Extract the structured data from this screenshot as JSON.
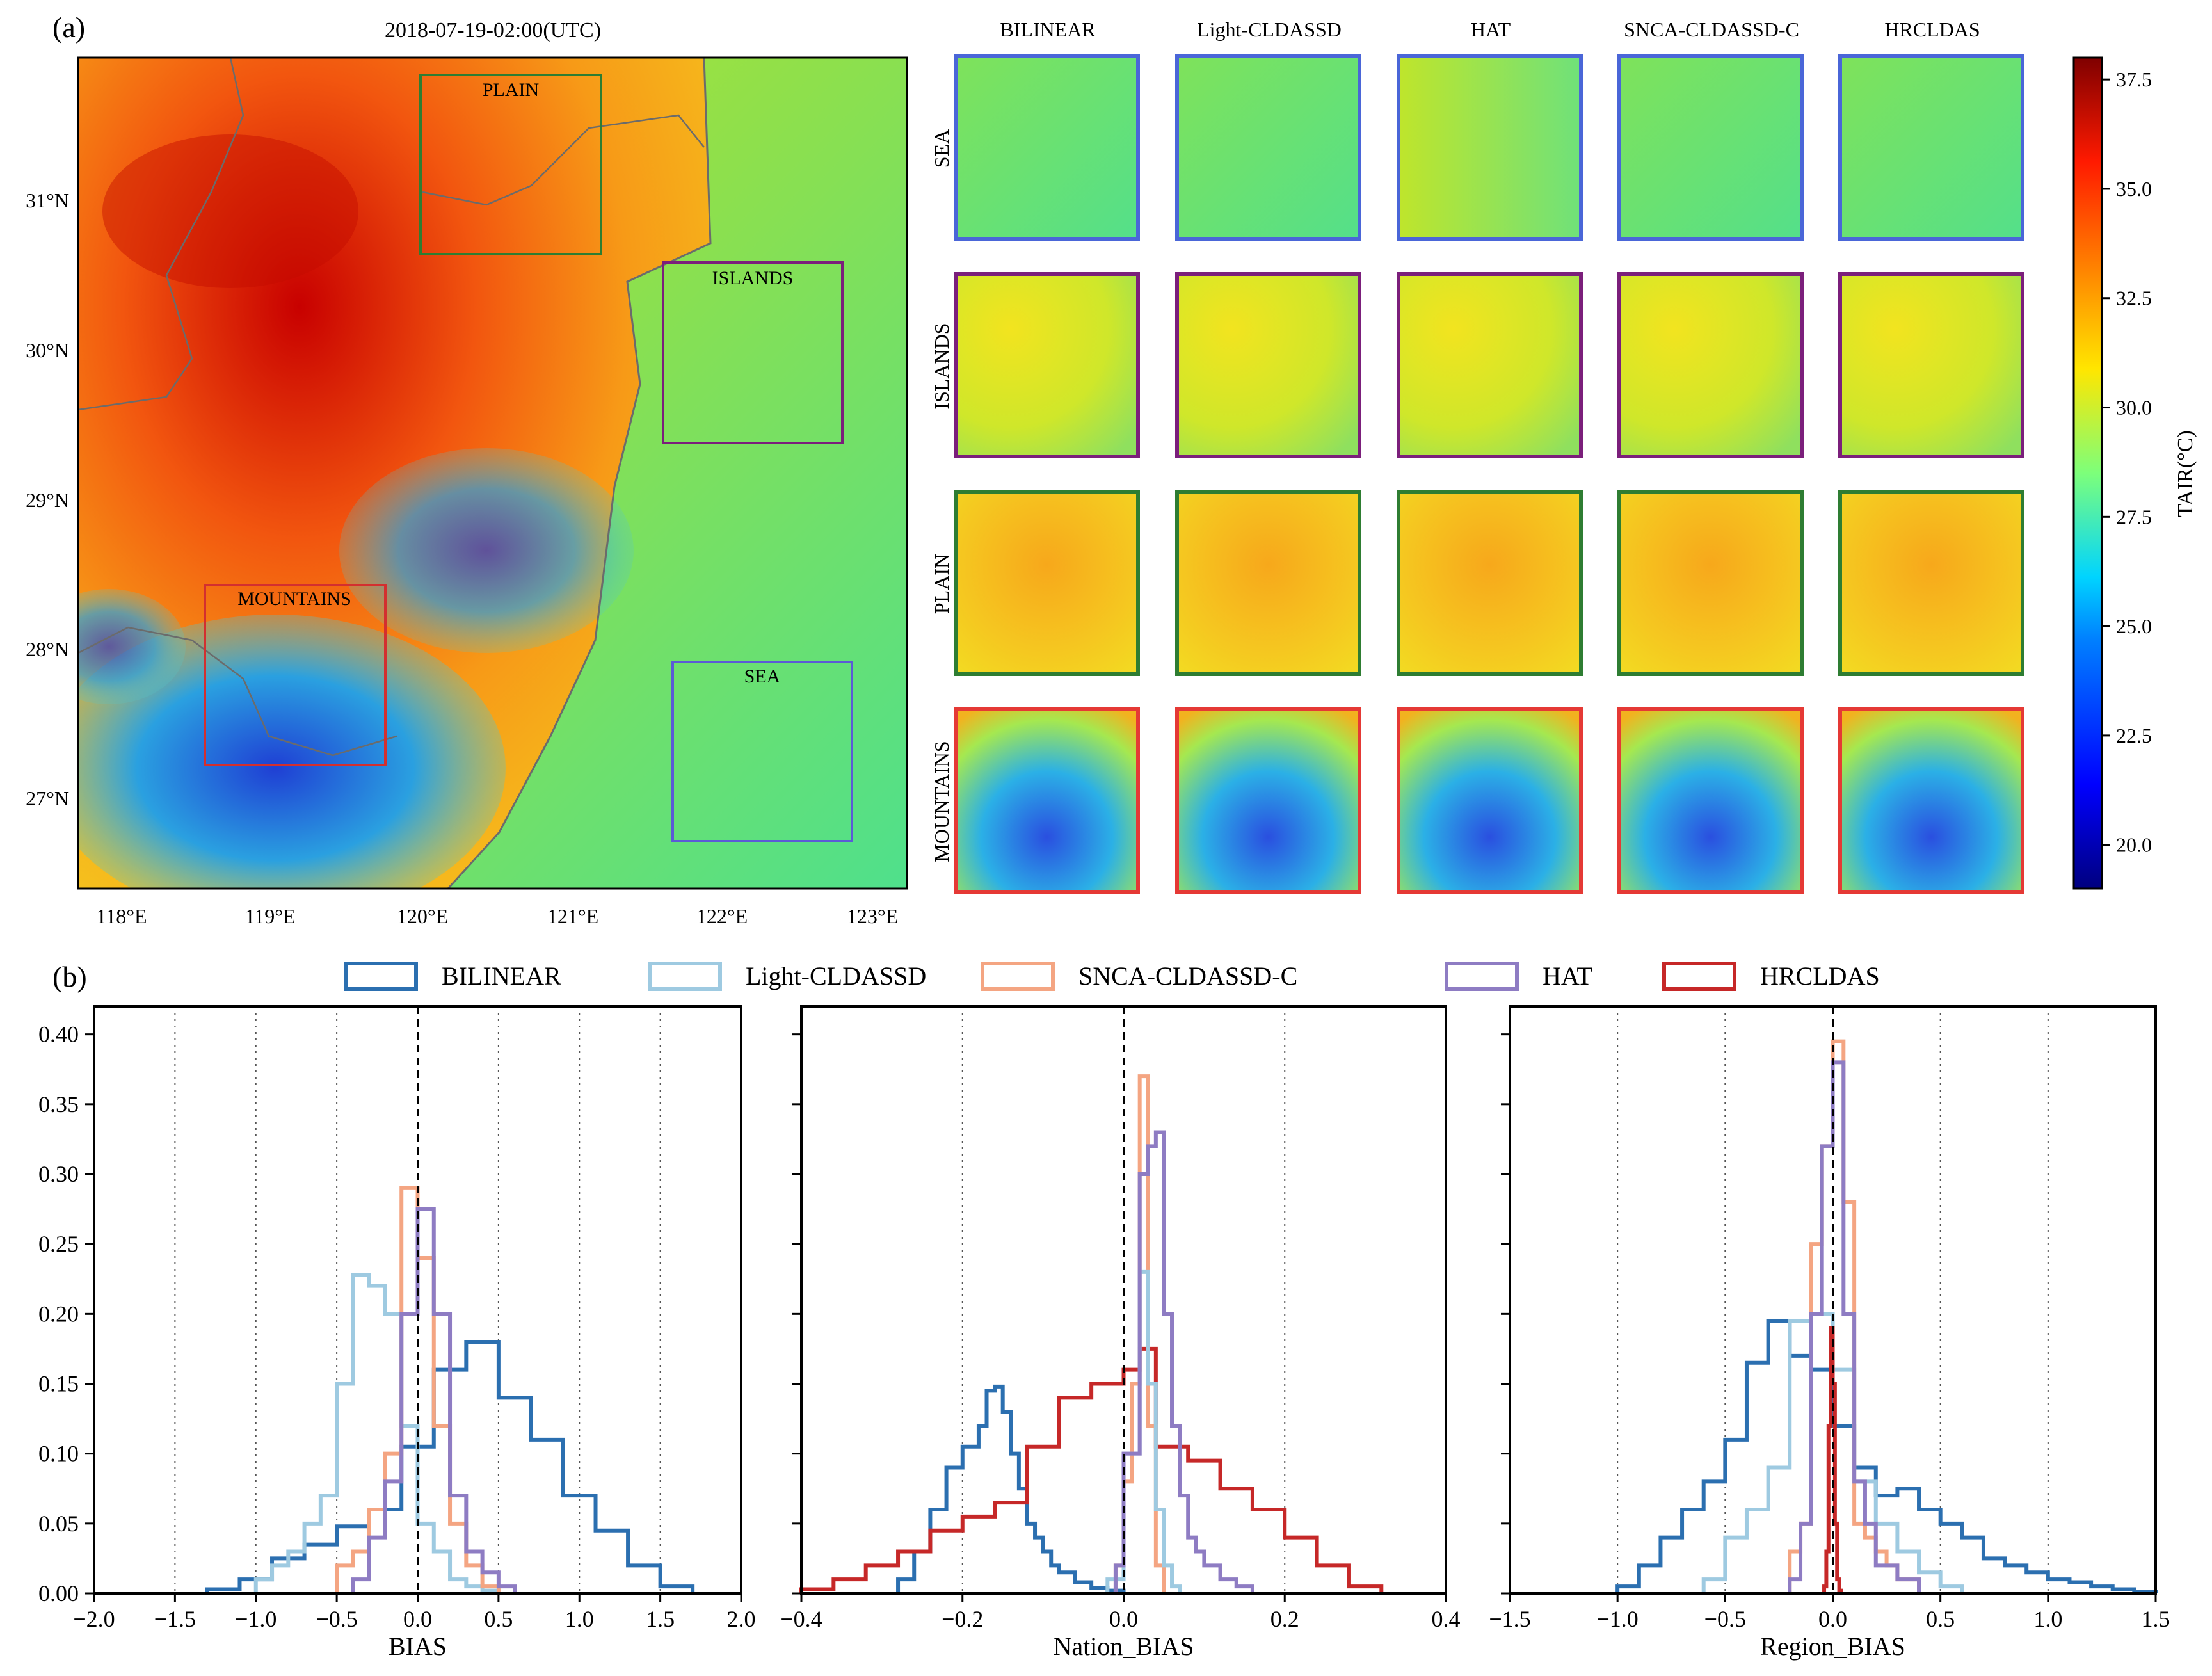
{
  "panel_a": {
    "label": "(a)",
    "timestamp": "2018-07-19-02:00(UTC)",
    "map_lon_ticks": [
      "118°E",
      "119°E",
      "120°E",
      "121°E",
      "122°E",
      "123°E"
    ],
    "map_lat_ticks": [
      "31°N",
      "30°N",
      "29°N",
      "28°N",
      "27°N"
    ],
    "regions": [
      {
        "name": "PLAIN",
        "color": "#2e7d32"
      },
      {
        "name": "ISLANDS",
        "color": "#7b1f7b"
      },
      {
        "name": "MOUNTAINS",
        "color": "#d32f2f"
      },
      {
        "name": "SEA",
        "color": "#5b5bd6"
      }
    ],
    "grid_columns": [
      "BILINEAR",
      "Light-CLDASSD",
      "HAT",
      "SNCA-CLDASSD-C",
      "HRCLDAS"
    ],
    "grid_rows": [
      {
        "name": "SEA",
        "color": "#4a66d8"
      },
      {
        "name": "ISLANDS",
        "color": "#7b1f7b"
      },
      {
        "name": "PLAIN",
        "color": "#2e7d32"
      },
      {
        "name": "MOUNTAINS",
        "color": "#e53935"
      }
    ],
    "colorbar": {
      "label": "TAIR(°C)",
      "ticks": [
        "37.5",
        "35.0",
        "32.5",
        "30.0",
        "27.5",
        "25.0",
        "22.5",
        "20.0"
      ],
      "range": [
        19.0,
        38.0
      ]
    }
  },
  "panel_b": {
    "label": "(b)",
    "legend": [
      {
        "name": "BILINEAR",
        "color": "#2b6fb0"
      },
      {
        "name": "Light-CLDASSD",
        "color": "#9ecae1"
      },
      {
        "name": "SNCA-CLDASSD-C",
        "color": "#f4a582"
      },
      {
        "name": "HAT",
        "color": "#8e7cc3"
      },
      {
        "name": "HRCLDAS",
        "color": "#c62828"
      }
    ]
  },
  "chart_data": [
    {
      "type": "step-histogram",
      "xlabel": "BIAS",
      "ylabel": "",
      "xlim": [
        -2.0,
        2.0
      ],
      "ylim": [
        0,
        0.42
      ],
      "xticks": [
        "−2.0",
        "−1.5",
        "−1.0",
        "−0.5",
        "0.0",
        "0.5",
        "1.0",
        "1.5",
        "2.0"
      ],
      "yticks": [
        "0.00",
        "0.05",
        "0.10",
        "0.15",
        "0.20",
        "0.25",
        "0.30",
        "0.35",
        "0.40"
      ],
      "vgrid": [
        -1.5,
        -1.0,
        -0.5,
        0.5,
        1.0,
        1.5
      ],
      "series": [
        {
          "name": "BILINEAR",
          "edges": [
            -1.3,
            -1.1,
            -0.9,
            -0.7,
            -0.5,
            -0.3,
            -0.1,
            0.1,
            0.3,
            0.5,
            0.7,
            0.9,
            1.1,
            1.3,
            1.5,
            1.7
          ],
          "values": [
            0.003,
            0.01,
            0.025,
            0.035,
            0.048,
            0.06,
            0.105,
            0.16,
            0.18,
            0.14,
            0.11,
            0.07,
            0.045,
            0.02,
            0.005
          ]
        },
        {
          "name": "Light-CLDASSD",
          "edges": [
            -1.0,
            -0.9,
            -0.8,
            -0.7,
            -0.6,
            -0.5,
            -0.4,
            -0.3,
            -0.2,
            -0.1,
            0.0,
            0.1,
            0.2,
            0.3,
            0.4,
            0.5
          ],
          "values": [
            0.01,
            0.02,
            0.03,
            0.05,
            0.07,
            0.15,
            0.228,
            0.22,
            0.2,
            0.12,
            0.05,
            0.03,
            0.01,
            0.005,
            0.002
          ]
        },
        {
          "name": "SNCA-CLDASSD-C",
          "edges": [
            -0.5,
            -0.4,
            -0.3,
            -0.2,
            -0.1,
            0.0,
            0.1,
            0.2,
            0.3,
            0.4,
            0.5
          ],
          "values": [
            0.02,
            0.03,
            0.06,
            0.1,
            0.29,
            0.24,
            0.12,
            0.05,
            0.02,
            0.005
          ]
        },
        {
          "name": "HAT",
          "edges": [
            -0.4,
            -0.3,
            -0.2,
            -0.1,
            0.0,
            0.1,
            0.2,
            0.3,
            0.4,
            0.5,
            0.6
          ],
          "values": [
            0.01,
            0.04,
            0.08,
            0.2,
            0.275,
            0.2,
            0.07,
            0.03,
            0.015,
            0.005
          ]
        }
      ]
    },
    {
      "type": "step-histogram",
      "xlabel": "Nation_BIAS",
      "ylabel": "",
      "xlim": [
        -0.4,
        0.4
      ],
      "ylim": [
        0,
        0.42
      ],
      "xticks": [
        "−0.4",
        "−0.2",
        "0.0",
        "0.2",
        "0.4"
      ],
      "vgrid": [
        -0.2,
        0.2
      ],
      "series": [
        {
          "name": "BILINEAR",
          "edges": [
            -0.28,
            -0.26,
            -0.24,
            -0.22,
            -0.2,
            -0.18,
            -0.17,
            -0.16,
            -0.15,
            -0.14,
            -0.13,
            -0.12,
            -0.11,
            -0.1,
            -0.09,
            -0.08,
            -0.06,
            -0.04,
            -0.02,
            0.0
          ],
          "values": [
            0.01,
            0.03,
            0.06,
            0.09,
            0.105,
            0.12,
            0.145,
            0.148,
            0.13,
            0.1,
            0.075,
            0.05,
            0.04,
            0.03,
            0.02,
            0.015,
            0.008,
            0.004,
            0.002
          ]
        },
        {
          "name": "HRCLDAS",
          "edges": [
            -0.4,
            -0.36,
            -0.32,
            -0.28,
            -0.24,
            -0.2,
            -0.16,
            -0.12,
            -0.08,
            -0.04,
            0.0,
            0.02,
            0.04,
            0.08,
            0.12,
            0.16,
            0.2,
            0.24,
            0.28,
            0.32
          ],
          "values": [
            0.003,
            0.01,
            0.02,
            0.03,
            0.045,
            0.055,
            0.065,
            0.105,
            0.14,
            0.15,
            0.16,
            0.175,
            0.105,
            0.095,
            0.075,
            0.06,
            0.04,
            0.02,
            0.005
          ]
        },
        {
          "name": "SNCA-CLDASSD-C",
          "edges": [
            -0.01,
            0.0,
            0.01,
            0.02,
            0.03,
            0.04,
            0.05
          ],
          "values": [
            0.02,
            0.08,
            0.15,
            0.37,
            0.12,
            0.02
          ]
        },
        {
          "name": "Light-CLDASSD",
          "edges": [
            -0.02,
            0.0,
            0.02,
            0.03,
            0.04,
            0.05,
            0.06,
            0.07
          ],
          "values": [
            0.01,
            0.1,
            0.23,
            0.15,
            0.06,
            0.02,
            0.005
          ]
        },
        {
          "name": "HAT",
          "edges": [
            -0.01,
            0.0,
            0.02,
            0.03,
            0.04,
            0.05,
            0.06,
            0.07,
            0.08,
            0.09,
            0.1,
            0.12,
            0.14,
            0.16
          ],
          "values": [
            0.02,
            0.1,
            0.3,
            0.32,
            0.33,
            0.2,
            0.12,
            0.07,
            0.04,
            0.03,
            0.02,
            0.01,
            0.005
          ]
        }
      ]
    },
    {
      "type": "step-histogram",
      "xlabel": "Region_BIAS",
      "ylabel": "",
      "xlim": [
        -1.5,
        1.5
      ],
      "ylim": [
        0,
        0.42
      ],
      "xticks": [
        "−1.5",
        "−1.0",
        "−0.5",
        "0.0",
        "0.5",
        "1.0",
        "1.5"
      ],
      "vgrid": [
        -1.0,
        -0.5,
        0.5,
        1.0
      ],
      "series": [
        {
          "name": "BILINEAR",
          "edges": [
            -1.0,
            -0.9,
            -0.8,
            -0.7,
            -0.6,
            -0.5,
            -0.4,
            -0.3,
            -0.2,
            -0.1,
            0.0,
            0.1,
            0.2,
            0.3,
            0.4,
            0.5,
            0.6,
            0.7,
            0.8,
            0.9,
            1.0,
            1.1,
            1.2,
            1.3,
            1.4,
            1.5
          ],
          "values": [
            0.005,
            0.02,
            0.04,
            0.06,
            0.08,
            0.11,
            0.165,
            0.195,
            0.17,
            0.16,
            0.12,
            0.09,
            0.07,
            0.075,
            0.06,
            0.05,
            0.04,
            0.025,
            0.02,
            0.015,
            0.01,
            0.008,
            0.005,
            0.003,
            0.001
          ]
        },
        {
          "name": "Light-CLDASSD",
          "edges": [
            -0.6,
            -0.5,
            -0.4,
            -0.3,
            -0.2,
            -0.1,
            0.0,
            0.1,
            0.2,
            0.3,
            0.4,
            0.5,
            0.6
          ],
          "values": [
            0.01,
            0.04,
            0.06,
            0.09,
            0.195,
            0.2,
            0.16,
            0.08,
            0.05,
            0.03,
            0.015,
            0.005
          ]
        },
        {
          "name": "SNCA-CLDASSD-C",
          "edges": [
            -0.2,
            -0.15,
            -0.1,
            -0.05,
            0.0,
            0.05,
            0.1,
            0.15,
            0.2,
            0.25,
            0.3,
            0.4
          ],
          "values": [
            0.03,
            0.05,
            0.25,
            0.32,
            0.395,
            0.28,
            0.05,
            0.04,
            0.03,
            0.02,
            0.01
          ]
        },
        {
          "name": "HAT",
          "edges": [
            -0.2,
            -0.15,
            -0.1,
            -0.05,
            0.0,
            0.05,
            0.1,
            0.15,
            0.2,
            0.3,
            0.4
          ],
          "values": [
            0.01,
            0.05,
            0.2,
            0.32,
            0.38,
            0.2,
            0.08,
            0.05,
            0.02,
            0.01
          ]
        },
        {
          "name": "HRCLDAS",
          "edges": [
            -0.04,
            -0.03,
            -0.02,
            -0.01,
            0.0,
            0.01,
            0.02,
            0.03,
            0.04
          ],
          "values": [
            0.005,
            0.03,
            0.12,
            0.19,
            0.15,
            0.05,
            0.01,
            0.002
          ]
        }
      ]
    }
  ]
}
